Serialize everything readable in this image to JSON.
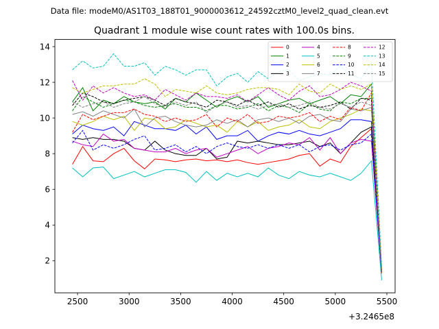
{
  "chart_data": {
    "type": "line",
    "suptitle": "Data file: modeM0/AS1T03_188T01_9000003612_24592cztM0_level2_quad_clean.evt",
    "title": "Quadrant 1 module wise count rates with 100.0s bins.",
    "xlabel": "",
    "ylabel": "",
    "offset_label": "+3.2465e8",
    "xlim": [
      2280,
      5580
    ],
    "ylim": [
      0.2,
      14.4
    ],
    "xticks": [
      2500,
      3000,
      3500,
      4000,
      4500,
      5000,
      5500
    ],
    "yticks": [
      2,
      4,
      6,
      8,
      10,
      12,
      14
    ],
    "grid": false,
    "legend_position": "top-right",
    "x": [
      2450,
      2550,
      2650,
      2750,
      2850,
      2950,
      3050,
      3150,
      3250,
      3350,
      3450,
      3550,
      3650,
      3750,
      3850,
      3950,
      4050,
      4150,
      4250,
      4350,
      4450,
      4550,
      4650,
      4750,
      4850,
      4950,
      5050,
      5150,
      5250,
      5350,
      5450
    ],
    "series": [
      {
        "name": "0",
        "color": "#ff0000",
        "dash": "solid",
        "values": [
          7.4,
          8.4,
          7.6,
          7.55,
          8.0,
          8.3,
          7.6,
          7.15,
          7.7,
          7.65,
          7.55,
          7.65,
          7.7,
          7.6,
          7.65,
          7.55,
          7.65,
          7.5,
          7.4,
          7.5,
          7.6,
          7.7,
          7.9,
          8.0,
          7.3,
          7.7,
          7.5,
          8.4,
          8.9,
          9.4,
          1.3
        ]
      },
      {
        "name": "1",
        "color": "#008000",
        "dash": "solid",
        "values": [
          10.9,
          11.7,
          10.4,
          11.0,
          10.8,
          11.2,
          10.9,
          10.8,
          10.9,
          10.5,
          11.1,
          10.9,
          11.4,
          11.0,
          10.6,
          11.0,
          11.2,
          10.9,
          11.2,
          10.6,
          10.8,
          11.0,
          11.1,
          10.8,
          11.0,
          11.2,
          10.8,
          11.3,
          11.2,
          11.9,
          1.4
        ]
      },
      {
        "name": "2",
        "color": "#0000ff",
        "dash": "solid",
        "values": [
          9.1,
          9.6,
          9.4,
          9.3,
          9.5,
          9.0,
          9.8,
          9.6,
          9.4,
          9.4,
          9.3,
          9.6,
          9.1,
          9.5,
          8.8,
          9.0,
          9.0,
          9.3,
          8.7,
          9.0,
          9.2,
          9.1,
          9.3,
          9.1,
          9.0,
          9.2,
          9.4,
          9.9,
          9.9,
          9.8,
          1.3
        ]
      },
      {
        "name": "3",
        "color": "#000000",
        "dash": "solid",
        "values": [
          8.9,
          8.8,
          8.9,
          8.8,
          8.8,
          8.7,
          8.3,
          8.2,
          8.7,
          8.2,
          8.0,
          7.9,
          7.9,
          8.3,
          7.7,
          7.8,
          8.7,
          8.6,
          8.7,
          8.6,
          8.5,
          8.5,
          8.6,
          8.7,
          8.4,
          8.6,
          8.0,
          8.6,
          9.2,
          9.5,
          1.3
        ]
      },
      {
        "name": "4",
        "color": "#bf00bf",
        "dash": "solid",
        "values": [
          8.7,
          8.5,
          8.4,
          9.1,
          8.7,
          8.8,
          8.3,
          8.2,
          8.1,
          8.1,
          8.3,
          8.0,
          8.2,
          8.3,
          7.8,
          8.0,
          8.2,
          8.4,
          8.0,
          8.3,
          8.4,
          8.6,
          8.5,
          8.9,
          8.2,
          8.9,
          8.0,
          8.6,
          8.8,
          8.7,
          1.3
        ]
      },
      {
        "name": "5",
        "color": "#00bfbf",
        "dash": "solid",
        "values": [
          7.2,
          6.7,
          7.2,
          7.25,
          6.6,
          6.8,
          7.0,
          6.7,
          6.9,
          7.1,
          7.1,
          6.95,
          6.4,
          7.0,
          6.5,
          6.9,
          6.7,
          6.9,
          6.7,
          7.2,
          6.8,
          6.6,
          7.0,
          6.8,
          6.7,
          6.9,
          6.7,
          6.5,
          6.9,
          7.6,
          0.9
        ]
      },
      {
        "name": "6",
        "color": "#bfbf00",
        "dash": "solid",
        "values": [
          9.8,
          9.6,
          9.8,
          10.1,
          9.9,
          10.1,
          9.3,
          10.0,
          9.9,
          9.4,
          9.5,
          9.9,
          9.7,
          9.5,
          9.6,
          9.2,
          9.8,
          9.5,
          9.8,
          9.3,
          9.5,
          9.6,
          9.9,
          9.5,
          9.4,
          9.8,
          10.0,
          10.2,
          10.5,
          10.4,
          1.3
        ]
      },
      {
        "name": "7",
        "color": "#808080",
        "dash": "solid",
        "values": [
          10.2,
          10.35,
          10.1,
          10.4,
          10.2,
          10.0,
          10.5,
          9.5,
          10.0,
          10.1,
          9.8,
          9.6,
          9.5,
          9.6,
          9.9,
          9.7,
          9.9,
          9.5,
          9.9,
          10.0,
          9.8,
          10.0,
          9.7,
          10.1,
          10.2,
          9.9,
          9.8,
          10.5,
          10.4,
          10.6,
          1.4
        ]
      },
      {
        "name": "8",
        "color": "#ff0000",
        "dash": "dashed",
        "values": [
          9.2,
          10.2,
          9.9,
          10.1,
          10.3,
          10.3,
          10.5,
          10.2,
          10.1,
          9.8,
          10.0,
          9.8,
          9.9,
          10.2,
          9.5,
          10.0,
          9.8,
          10.2,
          9.7,
          9.8,
          10.1,
          10.0,
          10.1,
          10.3,
          9.8,
          10.1,
          9.9,
          10.6,
          10.4,
          11.4,
          1.3
        ]
      },
      {
        "name": "9",
        "color": "#008000",
        "dash": "dashed",
        "values": [
          10.4,
          11.2,
          10.9,
          10.6,
          10.8,
          11.0,
          10.9,
          10.7,
          10.6,
          10.7,
          10.8,
          10.6,
          10.6,
          10.4,
          10.7,
          10.7,
          10.5,
          10.6,
          10.8,
          10.4,
          10.7,
          10.6,
          10.3,
          10.8,
          10.5,
          10.4,
          10.9,
          10.8,
          11.1,
          11.1,
          1.4
        ]
      },
      {
        "name": "10",
        "color": "#0000ff",
        "dash": "dashed",
        "values": [
          8.6,
          9.3,
          8.2,
          8.5,
          8.3,
          8.5,
          8.8,
          9.0,
          8.2,
          8.3,
          8.5,
          8.1,
          8.4,
          8.0,
          8.4,
          8.6,
          8.4,
          8.3,
          8.5,
          8.3,
          8.5,
          8.3,
          8.5,
          8.1,
          8.4,
          8.5,
          8.2,
          8.5,
          8.6,
          9.1,
          1.3
        ]
      },
      {
        "name": "11",
        "color": "#000000",
        "dash": "dashed",
        "values": [
          10.7,
          11.4,
          11.2,
          10.9,
          10.8,
          11.0,
          11.1,
          11.2,
          11.0,
          10.7,
          11.1,
          10.9,
          10.8,
          10.6,
          11.0,
          10.9,
          10.7,
          11.0,
          10.7,
          10.9,
          10.6,
          10.8,
          10.5,
          10.7,
          10.6,
          10.7,
          10.9,
          10.5,
          11.1,
          11.0,
          1.4
        ]
      },
      {
        "name": "12",
        "color": "#bf00bf",
        "dash": "dashed",
        "values": [
          12.1,
          11.0,
          11.8,
          11.4,
          11.7,
          11.4,
          11.2,
          11.3,
          11.0,
          11.6,
          11.3,
          11.0,
          11.4,
          11.2,
          11.2,
          11.1,
          11.3,
          10.9,
          11.3,
          11.7,
          11.3,
          11.0,
          11.5,
          11.8,
          11.2,
          11.3,
          11.6,
          12.0,
          11.8,
          11.5,
          1.5
        ]
      },
      {
        "name": "13",
        "color": "#00bfbf",
        "dash": "dashed",
        "values": [
          12.7,
          13.2,
          12.8,
          12.9,
          13.6,
          12.9,
          12.9,
          13.1,
          12.4,
          12.9,
          12.7,
          12.4,
          12.7,
          12.7,
          11.8,
          12.3,
          12.5,
          12.0,
          12.6,
          12.2,
          12.6,
          12.7,
          12.1,
          12.3,
          12.5,
          12.4,
          12.9,
          12.4,
          12.2,
          13.1,
          1.6
        ]
      },
      {
        "name": "14",
        "color": "#bfbf00",
        "dash": "dashed",
        "values": [
          11.7,
          11.4,
          11.6,
          11.8,
          11.8,
          11.9,
          11.9,
          12.2,
          11.9,
          11.2,
          11.6,
          11.5,
          11.4,
          11.8,
          11.4,
          11.3,
          11.4,
          11.6,
          11.7,
          11.7,
          11.6,
          11.3,
          11.9,
          11.5,
          11.4,
          11.9,
          11.6,
          11.8,
          11.6,
          11.9,
          1.5
        ]
      },
      {
        "name": "15",
        "color": "#808080",
        "dash": "dashed",
        "values": [
          10.9,
          10.6,
          10.8,
          10.9,
          10.6,
          10.8,
          10.9,
          11.2,
          10.8,
          10.6,
          10.9,
          10.7,
          10.9,
          10.3,
          10.7,
          10.9,
          10.6,
          10.7,
          10.5,
          10.7,
          10.8,
          10.6,
          10.7,
          10.9,
          10.6,
          10.5,
          10.8,
          10.6,
          10.9,
          10.7,
          1.4
        ]
      }
    ]
  }
}
